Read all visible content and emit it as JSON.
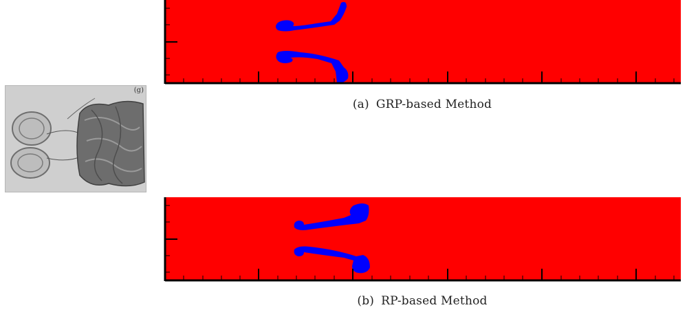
{
  "photo": {
    "tag": "(g)"
  },
  "panels": [
    {
      "tag": "(a)",
      "label": "GRP-based Method",
      "fluid_color": "#ff0000",
      "bubble_color": "#0000ff"
    },
    {
      "tag": "(b)",
      "label": "RP-based Method",
      "fluid_color": "#ff0000",
      "bubble_color": "#0000ff"
    }
  ]
}
